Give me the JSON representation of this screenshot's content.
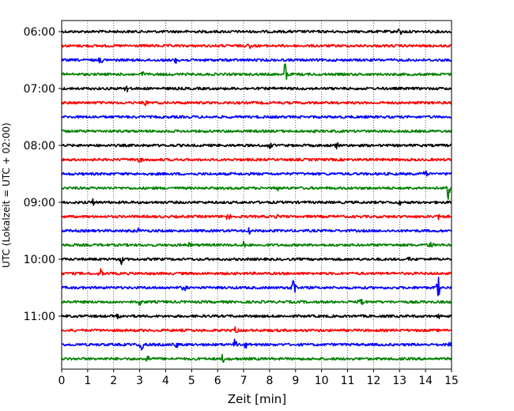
{
  "chart_data": {
    "type": "line",
    "title": "",
    "xlabel": "Zeit  [min]",
    "ylabel": "UTC (Lokalzeit = UTC + 02:00)",
    "xlim": [
      0,
      15
    ],
    "x_ticks": [
      "0",
      "1",
      "2",
      "3",
      "4",
      "5",
      "6",
      "7",
      "8",
      "9",
      "10",
      "11",
      "12",
      "13",
      "14",
      "15"
    ],
    "y_tick_labels": [
      "06:00",
      "07:00",
      "08:00",
      "09:00",
      "10:00",
      "11:00"
    ],
    "grid": "vertical dotted",
    "trace_colors": [
      "#000000",
      "#ff0000",
      "#0000ff",
      "#008000"
    ],
    "traces": [
      {
        "start": "06:00",
        "color": "#000000",
        "events": [
          {
            "t": 13.0,
            "amp": 0.35
          }
        ]
      },
      {
        "start": "06:15",
        "color": "#ff0000",
        "events": [
          {
            "t": 7.2,
            "amp": 0.3
          }
        ]
      },
      {
        "start": "06:30",
        "color": "#0000ff",
        "events": [
          {
            "t": 1.5,
            "amp": 0.3
          },
          {
            "t": 4.4,
            "amp": 0.3
          }
        ]
      },
      {
        "start": "06:45",
        "color": "#008000",
        "events": [
          {
            "t": 8.6,
            "amp": 1.0
          },
          {
            "t": 3.1,
            "amp": 0.25
          }
        ]
      },
      {
        "start": "07:00",
        "color": "#000000",
        "events": [
          {
            "t": 2.5,
            "amp": 0.25
          }
        ]
      },
      {
        "start": "07:15",
        "color": "#ff0000",
        "events": [
          {
            "t": 3.2,
            "amp": 0.3
          }
        ]
      },
      {
        "start": "07:30",
        "color": "#0000ff",
        "events": []
      },
      {
        "start": "07:45",
        "color": "#008000",
        "events": []
      },
      {
        "start": "08:00",
        "color": "#000000",
        "events": [
          {
            "t": 8.0,
            "amp": 0.25
          },
          {
            "t": 10.6,
            "amp": 0.25
          }
        ]
      },
      {
        "start": "08:15",
        "color": "#ff0000",
        "events": [
          {
            "t": 3.0,
            "amp": 0.25
          }
        ]
      },
      {
        "start": "08:30",
        "color": "#0000ff",
        "events": [
          {
            "t": 14.0,
            "amp": 0.3
          }
        ]
      },
      {
        "start": "08:45",
        "color": "#008000",
        "events": [
          {
            "t": 14.85,
            "amp": 1.0
          },
          {
            "t": 8.3,
            "amp": 0.25
          }
        ]
      },
      {
        "start": "09:00",
        "color": "#000000",
        "events": [
          {
            "t": 1.2,
            "amp": 0.35
          },
          {
            "t": 13.0,
            "amp": 0.35
          }
        ]
      },
      {
        "start": "09:15",
        "color": "#ff0000",
        "events": [
          {
            "t": 6.4,
            "amp": 0.3
          },
          {
            "t": 8.3,
            "amp": 0.3
          },
          {
            "t": 14.5,
            "amp": 0.3
          }
        ]
      },
      {
        "start": "09:30",
        "color": "#0000ff",
        "events": [
          {
            "t": 2.9,
            "amp": 0.35
          },
          {
            "t": 7.2,
            "amp": 0.35
          }
        ]
      },
      {
        "start": "09:45",
        "color": "#008000",
        "events": [
          {
            "t": 4.9,
            "amp": 0.3
          },
          {
            "t": 7.0,
            "amp": 0.3
          },
          {
            "t": 14.2,
            "amp": 0.3
          }
        ]
      },
      {
        "start": "10:00",
        "color": "#000000",
        "events": [
          {
            "t": 2.3,
            "amp": 0.45
          },
          {
            "t": 13.4,
            "amp": 0.25
          }
        ]
      },
      {
        "start": "10:15",
        "color": "#ff0000",
        "events": [
          {
            "t": 1.5,
            "amp": 0.35
          }
        ]
      },
      {
        "start": "10:30",
        "color": "#0000ff",
        "events": [
          {
            "t": 8.95,
            "amp": 1.0
          },
          {
            "t": 14.5,
            "amp": 0.85
          },
          {
            "t": 4.7,
            "amp": 0.25
          }
        ]
      },
      {
        "start": "10:45",
        "color": "#008000",
        "events": [
          {
            "t": 11.5,
            "amp": 0.35
          },
          {
            "t": 3.0,
            "amp": 0.25
          }
        ]
      },
      {
        "start": "11:00",
        "color": "#000000",
        "events": [
          {
            "t": 2.2,
            "amp": 0.25
          },
          {
            "t": 14.5,
            "amp": 0.25
          }
        ]
      },
      {
        "start": "11:15",
        "color": "#ff0000",
        "events": [
          {
            "t": 6.7,
            "amp": 0.25
          }
        ]
      },
      {
        "start": "11:30",
        "color": "#0000ff",
        "events": [
          {
            "t": 3.1,
            "amp": 0.45
          },
          {
            "t": 4.4,
            "amp": 0.35
          },
          {
            "t": 6.65,
            "amp": 0.45
          },
          {
            "t": 7.1,
            "amp": 0.35
          },
          {
            "t": 14.9,
            "amp": 0.3
          }
        ]
      },
      {
        "start": "11:45",
        "color": "#008000",
        "events": [
          {
            "t": 3.3,
            "amp": 0.35
          },
          {
            "t": 6.2,
            "amp": 0.35
          }
        ]
      }
    ]
  }
}
